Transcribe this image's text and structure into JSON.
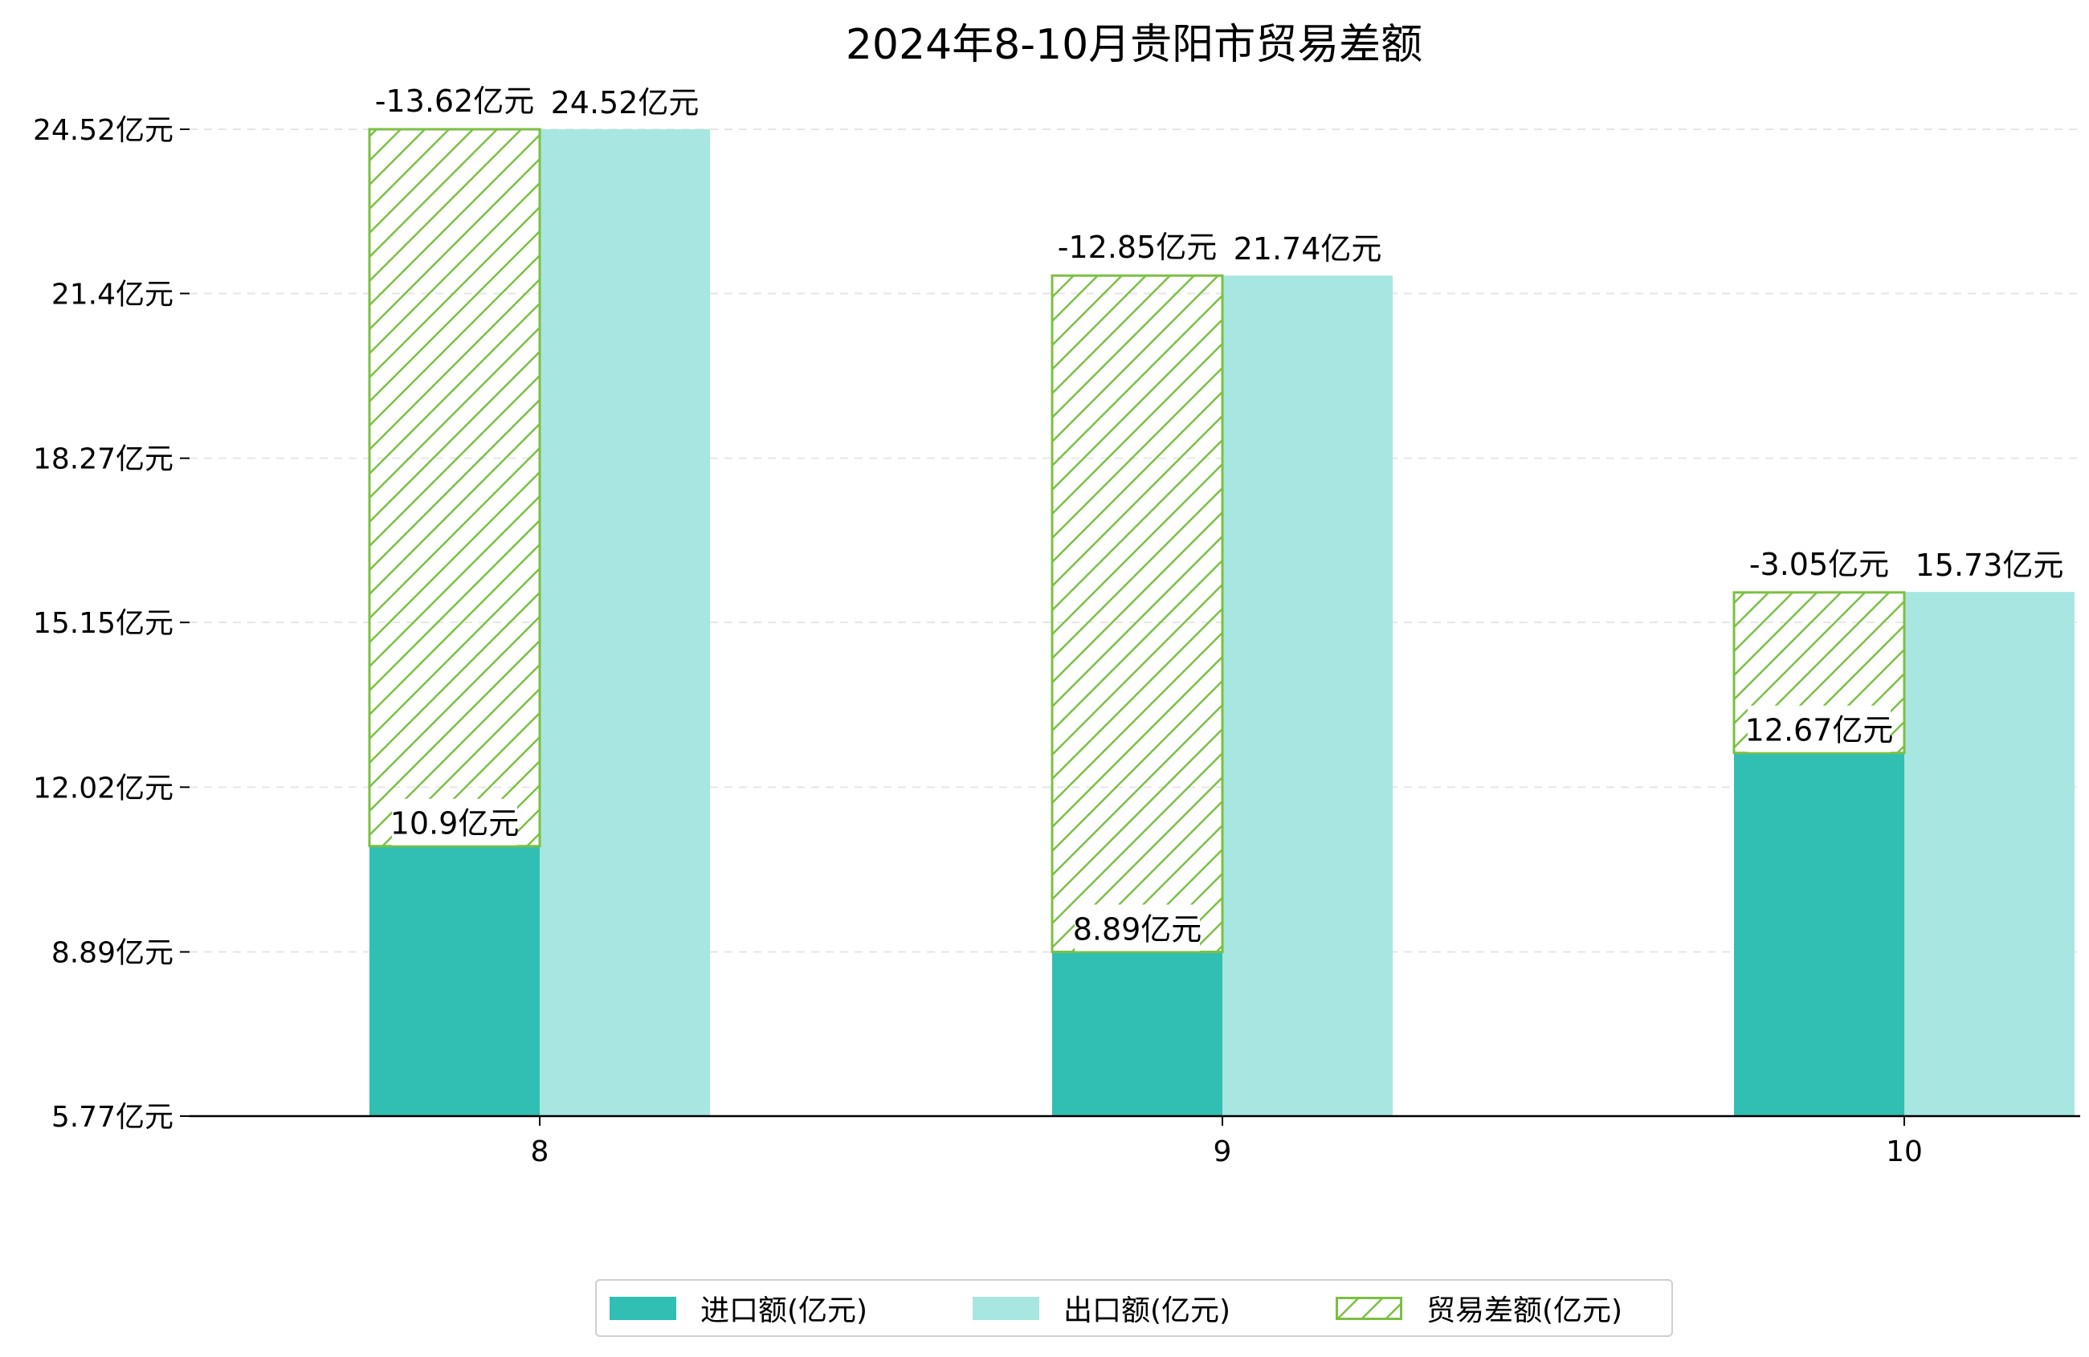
{
  "chart_data": {
    "type": "bar",
    "title": "2024年8-10月贵阳市贸易差额",
    "categories": [
      "8",
      "9",
      "10"
    ],
    "series": [
      {
        "name": "进口额(亿元)",
        "values": [
          10.9,
          8.89,
          12.67
        ],
        "color": "#30bfb2",
        "labels": [
          "10.9亿元",
          "8.89亿元",
          "12.67亿元"
        ]
      },
      {
        "name": "出口额(亿元)",
        "values": [
          24.52,
          21.74,
          15.73
        ],
        "color": "#a8e6e1",
        "labels": [
          "24.52亿元",
          "21.74亿元",
          "15.73亿元"
        ]
      },
      {
        "name": "贸易差额(亿元)",
        "values": [
          -13.62,
          -12.85,
          -3.05
        ],
        "color": "#7bc043",
        "labels": [
          "-13.62亿元",
          "-12.85亿元",
          "-3.05亿元"
        ]
      }
    ],
    "yticks": [
      5.77,
      8.89,
      12.02,
      15.15,
      18.27,
      21.4,
      24.52
    ],
    "ytick_labels": [
      "5.77亿元",
      "8.89亿元",
      "12.02亿元",
      "15.15亿元",
      "18.27亿元",
      "21.4亿元",
      "24.52亿元"
    ],
    "ylim": [
      5.77,
      24.52
    ],
    "grid": "horizontal dashed",
    "legend_position": "bottom-center"
  }
}
